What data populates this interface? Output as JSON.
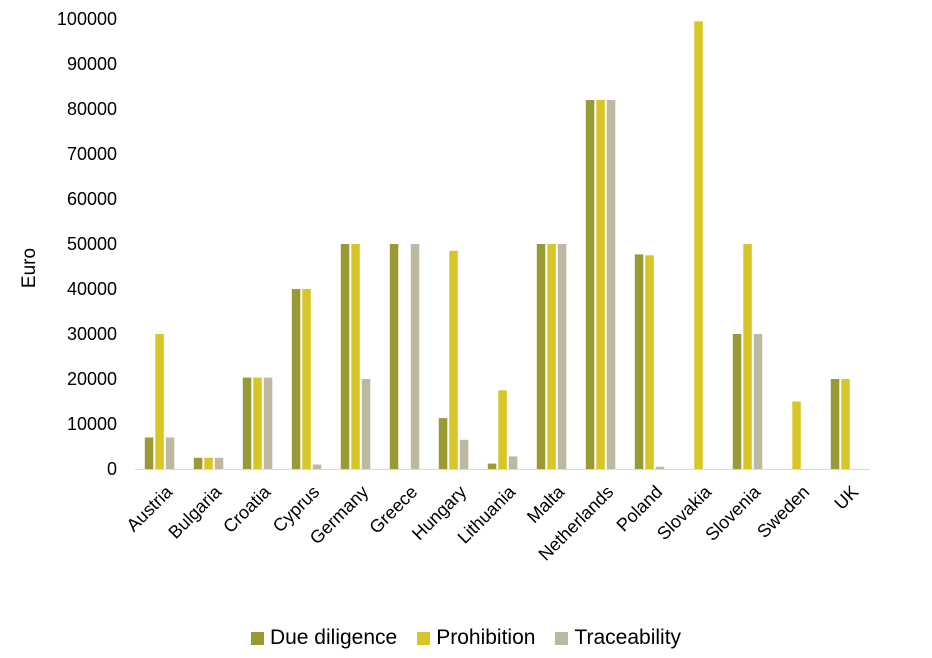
{
  "chart_data": {
    "type": "bar",
    "categories": [
      "Austria",
      "Bulgaria",
      "Croatia",
      "Cyprus",
      "Germany",
      "Greece",
      "Hungary",
      "Lithuania",
      "Malta",
      "Netherlands",
      "Poland",
      "Slovakia",
      "Slovenia",
      "Sweden",
      "UK"
    ],
    "series": [
      {
        "name": "Due diligence",
        "color": "#9a9a35",
        "values": [
          7000,
          2500,
          20300,
          40000,
          50000,
          50000,
          11300,
          1200,
          50000,
          82000,
          47700,
          0,
          30000,
          0,
          20000
        ]
      },
      {
        "name": "Prohibition",
        "color": "#d8c628",
        "values": [
          30000,
          2500,
          20300,
          40000,
          50000,
          0,
          48500,
          17500,
          50000,
          82000,
          47500,
          99500,
          50000,
          15000,
          20000
        ]
      },
      {
        "name": "Traceability",
        "color": "#bdb9a1",
        "values": [
          7000,
          2500,
          20300,
          1000,
          20000,
          50000,
          6500,
          2800,
          50000,
          82000,
          500,
          0,
          30000,
          0,
          0
        ]
      }
    ],
    "ylabel": "Euro",
    "xlabel": "",
    "ylim": [
      0,
      100000
    ],
    "yticks": [
      "0",
      "10000",
      "20000",
      "30000",
      "40000",
      "50000",
      "60000",
      "70000",
      "80000",
      "90000",
      "100000"
    ],
    "grid": false,
    "legend": "bottom"
  }
}
